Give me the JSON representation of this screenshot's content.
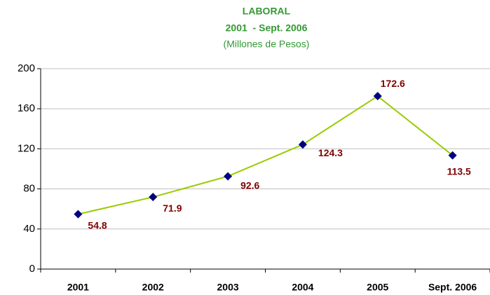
{
  "chart_data": {
    "type": "line",
    "title": "LABORAL",
    "subtitle": "2001  - Sept. 2006",
    "unit_note": "(Millones de Pesos)",
    "categories": [
      "2001",
      "2002",
      "2003",
      "2004",
      "2005",
      "Sept. 2006"
    ],
    "series": [
      {
        "name": "LABORAL",
        "color": "#99cc00",
        "marker_color": "#000080",
        "values": [
          54.8,
          71.9,
          92.6,
          124.3,
          172.6,
          113.5
        ]
      }
    ],
    "ylim": [
      0,
      200
    ],
    "yticks": [
      0,
      40,
      80,
      120,
      160,
      200
    ],
    "grid": true
  }
}
